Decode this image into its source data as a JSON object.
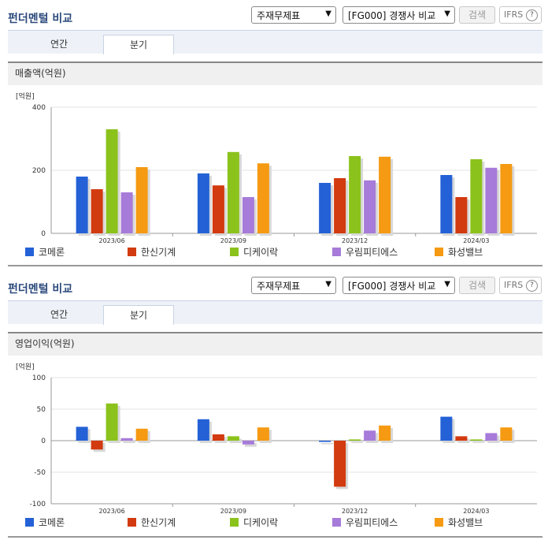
{
  "colors": {
    "title": "#2c4a7c",
    "series": [
      "#2461d6",
      "#d23a0f",
      "#8bc21c",
      "#a77bd9",
      "#f59a12"
    ]
  },
  "panels": [
    {
      "header": {
        "title": "펀더멘털 비교",
        "select_statement": "주재무제표",
        "select_compare": "[FG000] 경쟁사 비교",
        "search_label": "검색",
        "ifrs_label": "IFRS",
        "help_glyph": "?"
      },
      "tabs": [
        {
          "label": "연간",
          "active": false
        },
        {
          "label": "분기",
          "active": true
        }
      ],
      "section_title": "매출액(억원)",
      "chart_data": {
        "type": "bar",
        "title": "매출액(억원)",
        "yunit": "[억원]",
        "ylim": [
          0,
          400
        ],
        "yticks": [
          0,
          200,
          400
        ],
        "grid": true,
        "legend_position": "bottom",
        "categories": [
          "2023/06",
          "2023/09",
          "2023/12",
          "2024/03"
        ],
        "series": [
          {
            "name": "코메론",
            "values": [
              180,
              190,
              160,
              185
            ]
          },
          {
            "name": "한신기계",
            "values": [
              140,
              152,
              175,
              115
            ]
          },
          {
            "name": "디케이락",
            "values": [
              330,
              258,
              245,
              235
            ]
          },
          {
            "name": "우림피티에스",
            "values": [
              130,
              115,
              168,
              208
            ]
          },
          {
            "name": "화성밸브",
            "values": [
              210,
              222,
              243,
              220
            ]
          }
        ]
      }
    },
    {
      "header": {
        "title": "펀더멘털 비교",
        "select_statement": "주재무제표",
        "select_compare": "[FG000] 경쟁사 비교",
        "search_label": "검색",
        "ifrs_label": "IFRS",
        "help_glyph": "?"
      },
      "tabs": [
        {
          "label": "연간",
          "active": false
        },
        {
          "label": "분기",
          "active": true
        }
      ],
      "section_title": "영업이익(억원)",
      "chart_data": {
        "type": "bar",
        "title": "영업이익(억원)",
        "yunit": "[억원]",
        "ylim": [
          -100,
          100
        ],
        "yticks": [
          -100,
          -50,
          0,
          50,
          100
        ],
        "grid": true,
        "legend_position": "bottom",
        "categories": [
          "2023/06",
          "2023/09",
          "2023/12",
          "2024/03"
        ],
        "series": [
          {
            "name": "코메론",
            "values": [
              22,
              34,
              -2,
              38
            ]
          },
          {
            "name": "한신기계",
            "values": [
              -14,
              10,
              -73,
              7
            ]
          },
          {
            "name": "디케이락",
            "values": [
              59,
              7,
              2,
              2
            ]
          },
          {
            "name": "우림피티에스",
            "values": [
              4,
              -6,
              16,
              12
            ]
          },
          {
            "name": "화성밸브",
            "values": [
              19,
              21,
              24,
              21
            ]
          }
        ]
      }
    }
  ]
}
